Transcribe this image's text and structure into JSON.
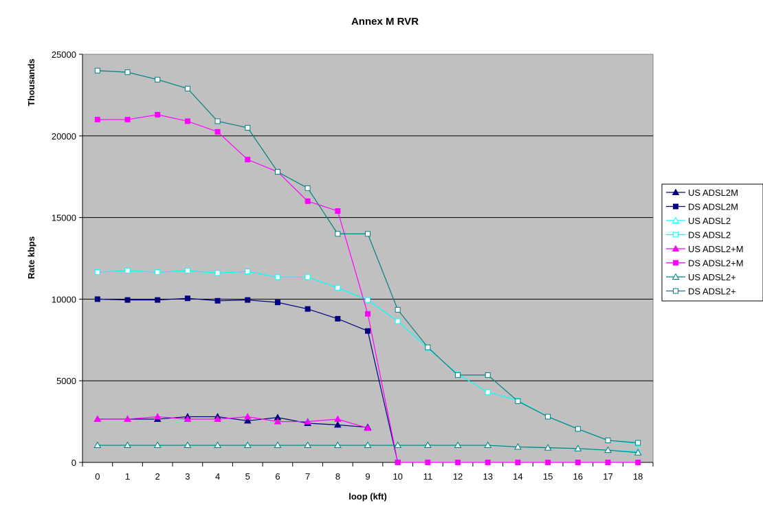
{
  "chart_data": {
    "type": "line",
    "title": "Annex M RVR",
    "xlabel": "loop (kft)",
    "ylabel": "Rate kbps",
    "y_unit_label": "Thousands",
    "x": [
      0,
      1,
      2,
      3,
      4,
      5,
      6,
      7,
      8,
      9,
      10,
      11,
      12,
      13,
      14,
      15,
      16,
      17,
      18
    ],
    "ylim": [
      0,
      25000
    ],
    "yticks": [
      0,
      5000,
      10000,
      15000,
      20000,
      25000
    ],
    "grid": "horizontal",
    "legend_position": "right",
    "series": [
      {
        "name": "US ADSL2M",
        "color": "#000080",
        "marker": "triangle",
        "filled": true,
        "values": [
          2650,
          2650,
          2650,
          2800,
          2800,
          2550,
          2750,
          2400,
          2300,
          2150,
          null,
          null,
          null,
          null,
          null,
          null,
          null,
          null,
          null
        ]
      },
      {
        "name": "DS ADSL2M",
        "color": "#000080",
        "marker": "square",
        "filled": true,
        "values": [
          10000,
          9950,
          9950,
          10050,
          9900,
          9950,
          9800,
          9400,
          8800,
          8050,
          0,
          null,
          null,
          null,
          null,
          null,
          null,
          null,
          null
        ]
      },
      {
        "name": "US ADSL2",
        "color": "#00ffff",
        "marker": "triangle",
        "filled": false,
        "values": [
          1050,
          1050,
          1050,
          1050,
          1050,
          1050,
          1050,
          1050,
          1050,
          1050,
          1050,
          1050,
          1050,
          1050,
          950,
          900,
          850,
          750,
          650
        ]
      },
      {
        "name": "DS ADSL2",
        "color": "#00ffff",
        "marker": "square",
        "filled": false,
        "values": [
          11650,
          11750,
          11650,
          11750,
          11600,
          11700,
          11350,
          11350,
          10700,
          9950,
          8650,
          7000,
          5400,
          4300,
          3800,
          2800,
          2050,
          1350,
          1150
        ]
      },
      {
        "name": "US ADSL2+M",
        "color": "#ff00ff",
        "marker": "triangle",
        "filled": true,
        "values": [
          2650,
          2650,
          2800,
          2650,
          2650,
          2800,
          2500,
          2500,
          2650,
          2100,
          null,
          null,
          null,
          null,
          null,
          null,
          null,
          null,
          null
        ]
      },
      {
        "name": "DS ADSL2+M",
        "color": "#ff00ff",
        "marker": "square",
        "filled": true,
        "values": [
          21000,
          21000,
          21300,
          20900,
          20250,
          18550,
          17800,
          16000,
          15400,
          9100,
          0,
          0,
          0,
          0,
          0,
          0,
          0,
          0,
          0
        ]
      },
      {
        "name": "US ADSL2+",
        "color": "#008080",
        "marker": "triangle",
        "filled": false,
        "values": [
          1050,
          1050,
          1050,
          1050,
          1050,
          1050,
          1050,
          1050,
          1050,
          1050,
          1050,
          1050,
          1050,
          1050,
          950,
          900,
          850,
          750,
          600
        ]
      },
      {
        "name": "DS ADSL2+",
        "color": "#008080",
        "marker": "square",
        "filled": false,
        "values": [
          24000,
          23900,
          23450,
          22900,
          20900,
          20500,
          17800,
          16800,
          14000,
          14000,
          9350,
          7050,
          5350,
          5350,
          3750,
          2800,
          2050,
          1350,
          1200
        ]
      }
    ]
  }
}
